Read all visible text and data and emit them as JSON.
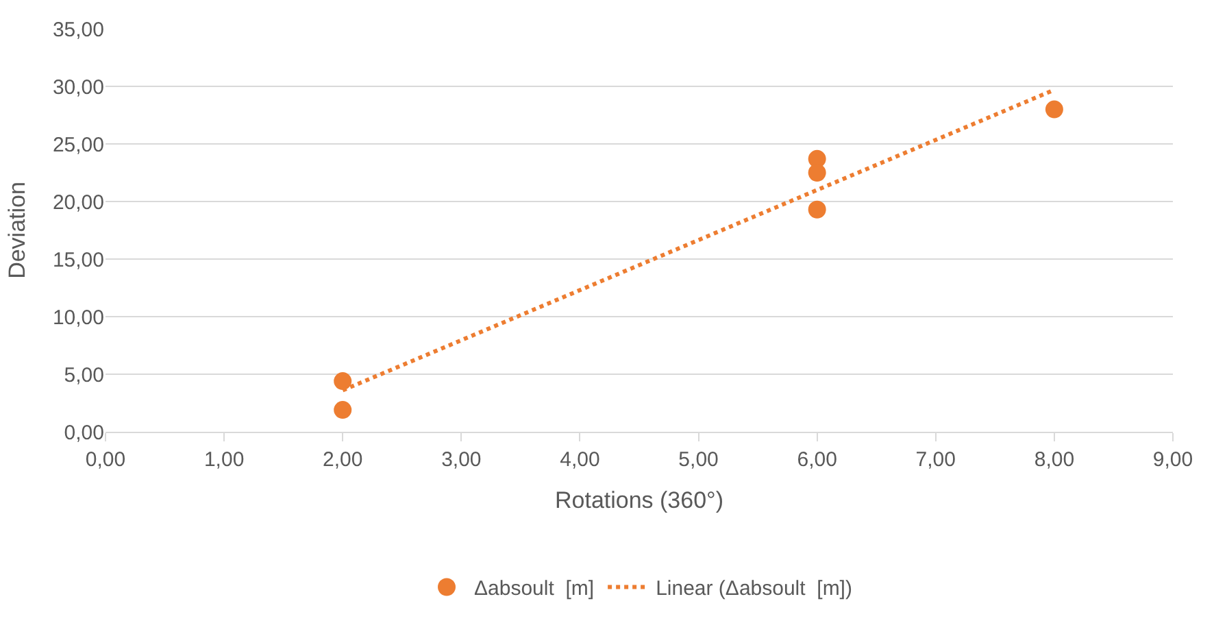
{
  "chart_data": {
    "type": "scatter",
    "xlabel": "Rotations (360°)",
    "ylabel": "Deviation",
    "series": [
      {
        "name": "Δabsoult  [m]",
        "color": "#ed7d31",
        "marker": "circle",
        "x": [
          2,
          2,
          6,
          6,
          6,
          8
        ],
        "values": [
          4.4,
          1.9,
          23.7,
          22.5,
          19.3,
          28.0
        ]
      },
      {
        "name": "Linear (Δabsoult  [m])",
        "color": "#ed7d31",
        "type": "line",
        "marker": "none",
        "line_style": "dotted",
        "x": [
          2,
          8
        ],
        "values": [
          3.6,
          29.7
        ]
      }
    ],
    "xlim": [
      0,
      9
    ],
    "ylim": [
      0,
      35
    ],
    "xticks": [
      {
        "value": 0,
        "label": "0,00"
      },
      {
        "value": 1,
        "label": "1,00"
      },
      {
        "value": 2,
        "label": "2,00"
      },
      {
        "value": 3,
        "label": "3,00"
      },
      {
        "value": 4,
        "label": "4,00"
      },
      {
        "value": 5,
        "label": "5,00"
      },
      {
        "value": 6,
        "label": "6,00"
      },
      {
        "value": 7,
        "label": "7,00"
      },
      {
        "value": 8,
        "label": "8,00"
      },
      {
        "value": 9,
        "label": "9,00"
      }
    ],
    "yticks": [
      {
        "value": 0,
        "label": "0,00"
      },
      {
        "value": 5,
        "label": "5,00"
      },
      {
        "value": 10,
        "label": "10,00"
      },
      {
        "value": 15,
        "label": "15,00"
      },
      {
        "value": 20,
        "label": "20,00"
      },
      {
        "value": 25,
        "label": "25,00"
      },
      {
        "value": 30,
        "label": "30,00"
      },
      {
        "value": 35,
        "label": "35,00"
      }
    ],
    "grid": "y",
    "legend": "bottom"
  }
}
